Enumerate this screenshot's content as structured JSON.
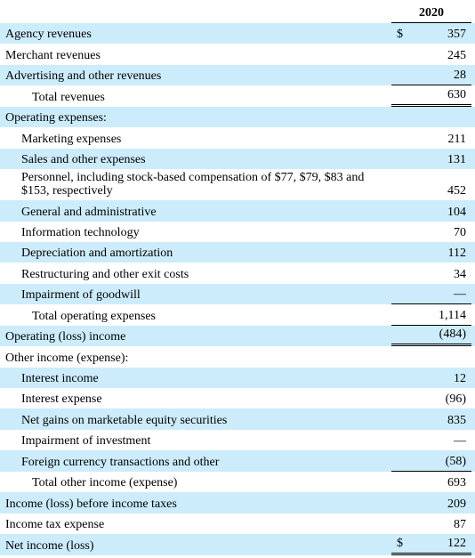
{
  "header": {
    "year": "2020"
  },
  "table": {
    "rows": [
      {
        "label": "Agency revenues",
        "currency": "$",
        "value": "357"
      },
      {
        "label": "Merchant revenues",
        "value": "245"
      },
      {
        "label": "Advertising and other revenues",
        "value": "28"
      },
      {
        "label": "Total revenues",
        "value": "630"
      },
      {
        "label": "Operating expenses:"
      },
      {
        "label": "Marketing expenses",
        "value": "211"
      },
      {
        "label": "Sales and other expenses",
        "value": "131"
      },
      {
        "label": "Personnel, including stock-based compensation of $77, $79, $83 and $153, respectively",
        "value": "452"
      },
      {
        "label": "General and administrative",
        "value": "104"
      },
      {
        "label": "Information technology",
        "value": "70"
      },
      {
        "label": "Depreciation and amortization",
        "value": "112"
      },
      {
        "label": "Restructuring and other exit costs",
        "value": "34"
      },
      {
        "label": "Impairment of goodwill",
        "value": "—"
      },
      {
        "label": "Total operating expenses",
        "value": "1,114"
      },
      {
        "label": "Operating (loss) income",
        "value": "(484)"
      },
      {
        "label": "Other income (expense):"
      },
      {
        "label": "Interest income",
        "value": "12"
      },
      {
        "label": "Interest expense",
        "value": "(96)"
      },
      {
        "label": "Net gains on marketable equity securities",
        "value": "835"
      },
      {
        "label": "Impairment of investment",
        "value": "—"
      },
      {
        "label": "Foreign currency transactions and other",
        "value": "(58)"
      },
      {
        "label": "Total other income (expense)",
        "value": "693"
      },
      {
        "label": "Income (loss) before income taxes",
        "value": "209"
      },
      {
        "label": "Income tax expense",
        "value": "87"
      },
      {
        "label": "Net income (loss)",
        "currency": "$",
        "value": "122"
      }
    ]
  }
}
